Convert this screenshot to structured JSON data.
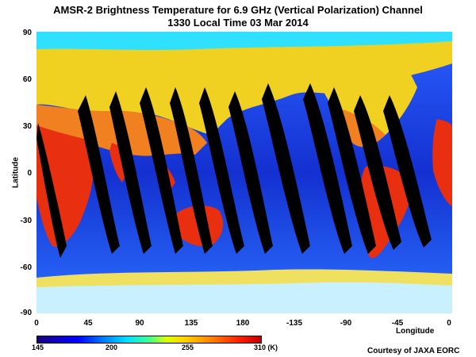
{
  "title_line1": "AMSR-2 Brightness Temperature for 6.9 GHz (Vertical Polarization) Channel",
  "title_line2": "1330 Local Time  03 Mar 2014",
  "y_axis": {
    "label": "Latitude",
    "ticks": [
      "90",
      "60",
      "30",
      "0",
      "-30",
      "-60",
      "-90"
    ]
  },
  "x_axis": {
    "label": "Longitude",
    "ticks": [
      "0",
      "45",
      "90",
      "135",
      "180",
      "-135",
      "-90",
      "-45",
      "0"
    ]
  },
  "colorbar": {
    "min": 145,
    "max": 310,
    "tick_labels": [
      "145",
      "200",
      "255",
      "310 (K)"
    ]
  },
  "credit": "Courtesy of JAXA EORC",
  "colors": {
    "ocean": "#1840e0",
    "land_warm": "#e83010",
    "land_cool": "#f0d020",
    "ice": "#20d0ff",
    "swath_gap": "#000000"
  }
}
